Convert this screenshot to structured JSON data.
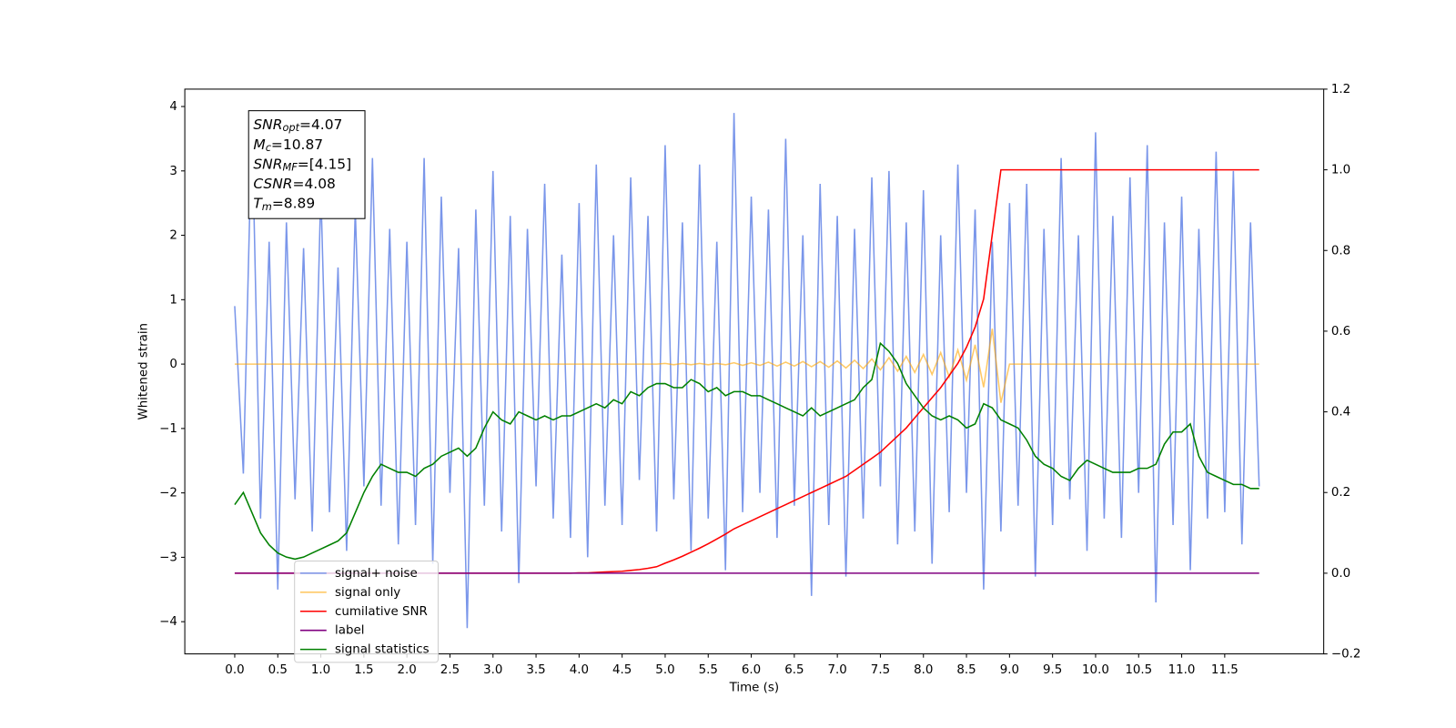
{
  "chart_data": {
    "type": "line",
    "xlabel": "Time (s)",
    "ylabel": "Whitened strain",
    "xlim": [
      -0.58,
      12.65
    ],
    "ylim": [
      -4.5,
      4.27
    ],
    "y2lim": [
      -0.2,
      1.2
    ],
    "xticks": [
      {
        "value": 0,
        "label": "0.0"
      },
      {
        "value": 0.5,
        "label": "0.5"
      },
      {
        "value": 1,
        "label": "1.0"
      },
      {
        "value": 1.5,
        "label": "1.5"
      },
      {
        "value": 2,
        "label": "2.0"
      },
      {
        "value": 2.5,
        "label": "2.5"
      },
      {
        "value": 3,
        "label": "3.0"
      },
      {
        "value": 3.5,
        "label": "3.5"
      },
      {
        "value": 4,
        "label": "4.0"
      },
      {
        "value": 4.5,
        "label": "4.5"
      },
      {
        "value": 5,
        "label": "5.0"
      },
      {
        "value": 5.5,
        "label": "5.5"
      },
      {
        "value": 6,
        "label": "6.0"
      },
      {
        "value": 6.5,
        "label": "6.5"
      },
      {
        "value": 7,
        "label": "7.0"
      },
      {
        "value": 7.5,
        "label": "7.5"
      },
      {
        "value": 8,
        "label": "8.0"
      },
      {
        "value": 8.5,
        "label": "8.5"
      },
      {
        "value": 9,
        "label": "9.0"
      },
      {
        "value": 9.5,
        "label": "9.5"
      },
      {
        "value": 10,
        "label": "10.0"
      },
      {
        "value": 10.5,
        "label": "10.5"
      },
      {
        "value": 11,
        "label": "11.0"
      },
      {
        "value": 11.5,
        "label": "11.5"
      }
    ],
    "yticks": [
      {
        "value": -4,
        "label": "−4"
      },
      {
        "value": -3,
        "label": "−3"
      },
      {
        "value": -2,
        "label": "−2"
      },
      {
        "value": -1,
        "label": "−1"
      },
      0,
      1,
      2,
      3,
      4
    ],
    "y2ticks": [
      {
        "value": -0.2,
        "label": "−0.2"
      },
      {
        "value": 0,
        "label": "0.0"
      },
      {
        "value": 0.2,
        "label": "0.2"
      },
      {
        "value": 0.4,
        "label": "0.4"
      },
      {
        "value": 0.6,
        "label": "0.6"
      },
      {
        "value": 0.8,
        "label": "0.8"
      },
      {
        "value": 1,
        "label": "1.0"
      },
      {
        "value": 1.2,
        "label": "1.2"
      }
    ],
    "annotations": [
      {
        "text": "SNR",
        "sub": "opt",
        "after": "=4.07"
      },
      {
        "text": "M",
        "sub": "c",
        "after": "=10.87"
      },
      {
        "text": "SNR",
        "sub": "MF",
        "after": "=[4.15]"
      },
      {
        "text": "CSNR",
        "after": "=4.08"
      },
      {
        "text": "T",
        "sub": "m",
        "after": "=8.89"
      }
    ],
    "x": [
      0,
      0.1,
      0.2,
      0.3,
      0.4,
      0.5,
      0.6,
      0.7,
      0.8,
      0.9,
      1,
      1.1,
      1.2,
      1.3,
      1.4,
      1.5,
      1.6,
      1.7,
      1.8,
      1.9,
      2,
      2.1,
      2.2,
      2.3,
      2.4,
      2.5,
      2.6,
      2.7,
      2.8,
      2.9,
      3,
      3.1,
      3.2,
      3.3,
      3.4,
      3.5,
      3.6,
      3.7,
      3.8,
      3.9,
      4,
      4.1,
      4.2,
      4.3,
      4.4,
      4.5,
      4.6,
      4.7,
      4.8,
      4.9,
      5,
      5.1,
      5.2,
      5.3,
      5.4,
      5.5,
      5.6,
      5.7,
      5.8,
      5.9,
      6,
      6.1,
      6.2,
      6.3,
      6.4,
      6.5,
      6.6,
      6.7,
      6.8,
      6.9,
      7,
      7.1,
      7.2,
      7.3,
      7.4,
      7.5,
      7.6,
      7.7,
      7.8,
      7.9,
      8,
      8.1,
      8.2,
      8.3,
      8.4,
      8.5,
      8.6,
      8.7,
      8.8,
      8.9,
      9,
      9.1,
      9.2,
      9.3,
      9.4,
      9.5,
      9.6,
      9.7,
      9.8,
      9.9,
      10,
      10.1,
      10.2,
      10.3,
      10.4,
      10.5,
      10.6,
      10.7,
      10.8,
      10.9,
      11,
      11.1,
      11.2,
      11.3,
      11.4,
      11.5,
      11.6,
      11.7,
      11.8,
      11.9
    ],
    "series": [
      {
        "name": "signal+ noise",
        "color": "#7a96ea",
        "axis": "y",
        "values": [
          0.9,
          -1.7,
          3.8,
          -2.4,
          1.9,
          -3.5,
          2.2,
          -2.1,
          1.8,
          -2.6,
          2.7,
          -2.3,
          1.5,
          -2.9,
          2.4,
          -1.9,
          3.2,
          -2.2,
          2.1,
          -2.8,
          1.9,
          -2.5,
          3.2,
          -3.1,
          2.6,
          -2.0,
          1.8,
          -4.1,
          2.4,
          -2.2,
          3.0,
          -2.6,
          2.3,
          -3.4,
          2.1,
          -1.9,
          2.8,
          -2.4,
          1.7,
          -2.7,
          2.5,
          -3.0,
          3.1,
          -2.2,
          2.0,
          -2.5,
          2.9,
          -1.8,
          2.3,
          -2.6,
          3.4,
          -2.1,
          2.2,
          -2.9,
          3.1,
          -2.4,
          1.9,
          -3.2,
          3.9,
          -2.3,
          2.6,
          -2.0,
          2.4,
          -2.7,
          3.5,
          -2.2,
          2.0,
          -3.6,
          2.8,
          -2.5,
          2.3,
          -3.3,
          2.1,
          -2.4,
          2.9,
          -1.9,
          3.0,
          -2.8,
          2.2,
          -2.6,
          2.7,
          -3.1,
          2.0,
          -2.3,
          3.1,
          -2.0,
          2.4,
          -3.5,
          1.9,
          -2.6,
          2.5,
          -2.2,
          2.8,
          -3.3,
          2.1,
          -2.5,
          3.2,
          -2.1,
          2.0,
          -2.9,
          3.6,
          -2.4,
          2.3,
          -2.7,
          2.9,
          -2.0,
          3.4,
          -3.7,
          2.2,
          -2.5,
          2.6,
          -3.2,
          2.1,
          -2.4,
          3.3,
          -2.3,
          3.0,
          -2.8,
          2.2,
          -1.9
        ]
      },
      {
        "name": "signal only",
        "color": "#ffa500",
        "axis": "y",
        "values": [
          0,
          0,
          0,
          0,
          0,
          0,
          0,
          0,
          0,
          0,
          0,
          0,
          0,
          0,
          0,
          0,
          0,
          0,
          0,
          0,
          0,
          0,
          0,
          0,
          0,
          0,
          0,
          0,
          0,
          0,
          0,
          0,
          0,
          0,
          0,
          0,
          0,
          0,
          0,
          0,
          0,
          0,
          0,
          0,
          0,
          0,
          0,
          0,
          0,
          0,
          0.01,
          -0.01,
          0.01,
          -0.01,
          0.01,
          -0.01,
          0.01,
          -0.01,
          0.02,
          -0.02,
          0.02,
          -0.02,
          0.03,
          -0.03,
          0.03,
          -0.03,
          0.04,
          -0.04,
          0.04,
          -0.05,
          0.05,
          -0.06,
          0.06,
          -0.07,
          0.08,
          -0.09,
          0.1,
          -0.11,
          0.12,
          -0.13,
          0.15,
          -0.16,
          0.18,
          -0.2,
          0.22,
          -0.25,
          0.3,
          -0.36,
          0.55,
          -0.6,
          0,
          0,
          0,
          0,
          0,
          0,
          0,
          0,
          0,
          0,
          0,
          0,
          0,
          0,
          0,
          0,
          0,
          0,
          0,
          0,
          0,
          0,
          0,
          0,
          0,
          0,
          0,
          0,
          0,
          0
        ]
      },
      {
        "name": "cumilative SNR",
        "color": "#ff0000",
        "axis": "y2",
        "values": [
          0,
          0,
          0,
          0,
          0,
          0,
          0,
          0,
          0,
          0,
          0,
          0,
          0,
          0,
          0,
          0,
          0,
          0,
          0,
          0,
          0,
          0,
          0,
          0,
          0,
          0,
          0,
          0,
          0,
          0,
          0,
          0,
          0,
          0,
          0,
          0,
          0,
          0,
          0,
          0,
          0.001,
          0.001,
          0.002,
          0.003,
          0.004,
          0.005,
          0.007,
          0.009,
          0.012,
          0.016,
          0.025,
          0.033,
          0.042,
          0.052,
          0.062,
          0.073,
          0.085,
          0.097,
          0.11,
          0.12,
          0.13,
          0.14,
          0.15,
          0.16,
          0.17,
          0.18,
          0.19,
          0.2,
          0.21,
          0.22,
          0.23,
          0.24,
          0.255,
          0.27,
          0.285,
          0.3,
          0.32,
          0.34,
          0.36,
          0.385,
          0.41,
          0.435,
          0.46,
          0.49,
          0.52,
          0.56,
          0.61,
          0.68,
          0.84,
          1,
          1,
          1,
          1,
          1,
          1,
          1,
          1,
          1,
          1,
          1,
          1,
          1,
          1,
          1,
          1,
          1,
          1,
          1,
          1,
          1,
          1,
          1,
          1,
          1,
          1,
          1,
          1,
          1,
          1,
          1
        ]
      },
      {
        "name": "label",
        "color": "#800080",
        "axis": "y2",
        "values": [
          0,
          0,
          0,
          0,
          0,
          0,
          0,
          0,
          0,
          0,
          0,
          0,
          0,
          0,
          0,
          0,
          0,
          0,
          0,
          0,
          0,
          0,
          0,
          0,
          0,
          0,
          0,
          0,
          0,
          0,
          0,
          0,
          0,
          0,
          0,
          0,
          0,
          0,
          0,
          0,
          0,
          0,
          0,
          0,
          0,
          0,
          0,
          0,
          0,
          0,
          0,
          0,
          0,
          0,
          0,
          0,
          0,
          0,
          0,
          0,
          0,
          0,
          0,
          0,
          0,
          0,
          0,
          0,
          0,
          0,
          0,
          0,
          0,
          0,
          0,
          0,
          0,
          0,
          0,
          0,
          0,
          0,
          0,
          0,
          0,
          0,
          0,
          0,
          0,
          0,
          0,
          0,
          0,
          0,
          0,
          0,
          0,
          0,
          0,
          0,
          0,
          0,
          0,
          0,
          0,
          0,
          0,
          0,
          0,
          0,
          0,
          0,
          0,
          0,
          0,
          0,
          0,
          0,
          0,
          0
        ]
      },
      {
        "name": "signal statistics",
        "color": "#008000",
        "axis": "y2",
        "values": [
          0.17,
          0.2,
          0.15,
          0.1,
          0.07,
          0.05,
          0.04,
          0.035,
          0.04,
          0.05,
          0.06,
          0.07,
          0.08,
          0.1,
          0.15,
          0.2,
          0.24,
          0.27,
          0.26,
          0.25,
          0.25,
          0.24,
          0.26,
          0.27,
          0.29,
          0.3,
          0.31,
          0.29,
          0.31,
          0.36,
          0.4,
          0.38,
          0.37,
          0.4,
          0.39,
          0.38,
          0.39,
          0.38,
          0.39,
          0.39,
          0.4,
          0.41,
          0.42,
          0.41,
          0.43,
          0.42,
          0.45,
          0.44,
          0.46,
          0.47,
          0.47,
          0.46,
          0.46,
          0.48,
          0.47,
          0.45,
          0.46,
          0.44,
          0.45,
          0.45,
          0.44,
          0.44,
          0.43,
          0.42,
          0.41,
          0.4,
          0.39,
          0.41,
          0.39,
          0.4,
          0.41,
          0.42,
          0.43,
          0.46,
          0.48,
          0.57,
          0.55,
          0.52,
          0.47,
          0.44,
          0.41,
          0.39,
          0.38,
          0.39,
          0.38,
          0.36,
          0.37,
          0.42,
          0.41,
          0.38,
          0.37,
          0.36,
          0.33,
          0.29,
          0.27,
          0.26,
          0.24,
          0.23,
          0.26,
          0.28,
          0.27,
          0.26,
          0.25,
          0.25,
          0.25,
          0.26,
          0.26,
          0.27,
          0.32,
          0.35,
          0.35,
          0.37,
          0.29,
          0.25,
          0.24,
          0.23,
          0.22,
          0.22,
          0.21,
          0.21
        ]
      }
    ]
  }
}
